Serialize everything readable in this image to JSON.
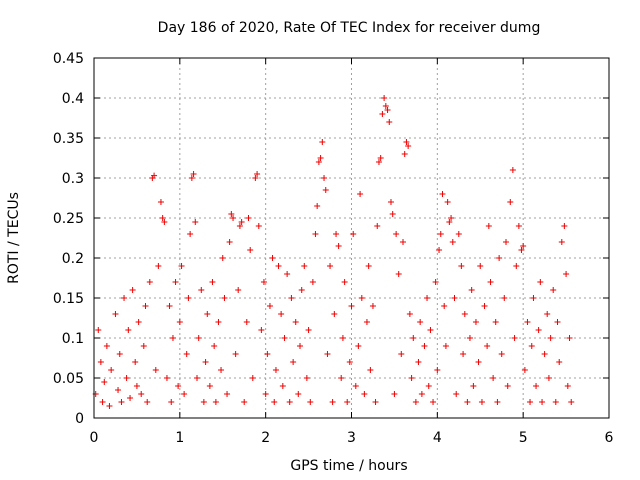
{
  "colors": {
    "series": "#ee0000",
    "grid": "#a0a0a0",
    "axis": "#000000"
  },
  "chart_data": {
    "type": "scatter",
    "title": "Day 186 of 2020, Rate Of TEC Index for receiver dumg",
    "xlabel": "GPS time / hours",
    "ylabel": "ROTI / TECUs",
    "xlim": [
      0,
      6
    ],
    "ylim": [
      0,
      0.45
    ],
    "xticks": [
      0,
      1,
      2,
      3,
      4,
      5,
      6
    ],
    "xtick_labels": [
      "0",
      "1",
      "2",
      "3",
      "4",
      "5",
      "6"
    ],
    "yticks": [
      0,
      0.05,
      0.1,
      0.15,
      0.2,
      0.25,
      0.3,
      0.35,
      0.4,
      0.45
    ],
    "ytick_labels": [
      "0",
      "0.05",
      "0.1",
      "0.15",
      "0.2",
      "0.25",
      "0.3",
      "0.35",
      "0.4",
      "0.45"
    ],
    "grid": true,
    "marker": "plus",
    "series": [
      {
        "points": [
          [
            0.02,
            0.03
          ],
          [
            0.05,
            0.11
          ],
          [
            0.08,
            0.07
          ],
          [
            0.1,
            0.02
          ],
          [
            0.12,
            0.045
          ],
          [
            0.15,
            0.09
          ],
          [
            0.18,
            0.015
          ],
          [
            0.2,
            0.06
          ],
          [
            0.25,
            0.13
          ],
          [
            0.28,
            0.035
          ],
          [
            0.3,
            0.08
          ],
          [
            0.32,
            0.02
          ],
          [
            0.35,
            0.15
          ],
          [
            0.38,
            0.05
          ],
          [
            0.4,
            0.11
          ],
          [
            0.42,
            0.025
          ],
          [
            0.45,
            0.16
          ],
          [
            0.48,
            0.07
          ],
          [
            0.5,
            0.04
          ],
          [
            0.52,
            0.12
          ],
          [
            0.55,
            0.03
          ],
          [
            0.58,
            0.09
          ],
          [
            0.6,
            0.14
          ],
          [
            0.62,
            0.02
          ],
          [
            0.65,
            0.17
          ],
          [
            0.68,
            0.3
          ],
          [
            0.7,
            0.303
          ],
          [
            0.72,
            0.06
          ],
          [
            0.75,
            0.19
          ],
          [
            0.78,
            0.27
          ],
          [
            0.8,
            0.25
          ],
          [
            0.82,
            0.245
          ],
          [
            0.85,
            0.05
          ],
          [
            0.88,
            0.14
          ],
          [
            0.9,
            0.02
          ],
          [
            0.92,
            0.1
          ],
          [
            0.95,
            0.17
          ],
          [
            0.98,
            0.04
          ],
          [
            1.0,
            0.12
          ],
          [
            1.02,
            0.19
          ],
          [
            1.05,
            0.03
          ],
          [
            1.08,
            0.08
          ],
          [
            1.1,
            0.15
          ],
          [
            1.12,
            0.23
          ],
          [
            1.14,
            0.3
          ],
          [
            1.16,
            0.305
          ],
          [
            1.18,
            0.245
          ],
          [
            1.2,
            0.05
          ],
          [
            1.22,
            0.1
          ],
          [
            1.25,
            0.16
          ],
          [
            1.28,
            0.02
          ],
          [
            1.3,
            0.07
          ],
          [
            1.32,
            0.13
          ],
          [
            1.35,
            0.04
          ],
          [
            1.38,
            0.17
          ],
          [
            1.4,
            0.09
          ],
          [
            1.42,
            0.02
          ],
          [
            1.45,
            0.12
          ],
          [
            1.48,
            0.06
          ],
          [
            1.5,
            0.2
          ],
          [
            1.52,
            0.15
          ],
          [
            1.55,
            0.03
          ],
          [
            1.58,
            0.22
          ],
          [
            1.6,
            0.255
          ],
          [
            1.62,
            0.25
          ],
          [
            1.65,
            0.08
          ],
          [
            1.68,
            0.16
          ],
          [
            1.7,
            0.24
          ],
          [
            1.72,
            0.245
          ],
          [
            1.75,
            0.02
          ],
          [
            1.78,
            0.12
          ],
          [
            1.8,
            0.25
          ],
          [
            1.82,
            0.21
          ],
          [
            1.85,
            0.05
          ],
          [
            1.88,
            0.3
          ],
          [
            1.9,
            0.305
          ],
          [
            1.92,
            0.24
          ],
          [
            1.95,
            0.11
          ],
          [
            1.98,
            0.17
          ],
          [
            2.0,
            0.03
          ],
          [
            2.02,
            0.08
          ],
          [
            2.05,
            0.14
          ],
          [
            2.08,
            0.2
          ],
          [
            2.1,
            0.02
          ],
          [
            2.12,
            0.06
          ],
          [
            2.15,
            0.19
          ],
          [
            2.18,
            0.13
          ],
          [
            2.2,
            0.04
          ],
          [
            2.22,
            0.1
          ],
          [
            2.25,
            0.18
          ],
          [
            2.28,
            0.02
          ],
          [
            2.3,
            0.15
          ],
          [
            2.32,
            0.07
          ],
          [
            2.35,
            0.12
          ],
          [
            2.38,
            0.03
          ],
          [
            2.4,
            0.09
          ],
          [
            2.42,
            0.16
          ],
          [
            2.45,
            0.19
          ],
          [
            2.48,
            0.05
          ],
          [
            2.5,
            0.11
          ],
          [
            2.52,
            0.02
          ],
          [
            2.55,
            0.17
          ],
          [
            2.58,
            0.23
          ],
          [
            2.6,
            0.265
          ],
          [
            2.62,
            0.32
          ],
          [
            2.64,
            0.325
          ],
          [
            2.66,
            0.345
          ],
          [
            2.68,
            0.3
          ],
          [
            2.7,
            0.285
          ],
          [
            2.72,
            0.08
          ],
          [
            2.75,
            0.19
          ],
          [
            2.78,
            0.02
          ],
          [
            2.8,
            0.13
          ],
          [
            2.82,
            0.23
          ],
          [
            2.85,
            0.215
          ],
          [
            2.88,
            0.05
          ],
          [
            2.9,
            0.1
          ],
          [
            2.92,
            0.17
          ],
          [
            2.95,
            0.02
          ],
          [
            2.98,
            0.07
          ],
          [
            3.0,
            0.14
          ],
          [
            3.02,
            0.23
          ],
          [
            3.05,
            0.04
          ],
          [
            3.08,
            0.09
          ],
          [
            3.1,
            0.28
          ],
          [
            3.12,
            0.15
          ],
          [
            3.15,
            0.03
          ],
          [
            3.18,
            0.12
          ],
          [
            3.2,
            0.19
          ],
          [
            3.22,
            0.06
          ],
          [
            3.25,
            0.14
          ],
          [
            3.28,
            0.02
          ],
          [
            3.3,
            0.24
          ],
          [
            3.32,
            0.32
          ],
          [
            3.34,
            0.325
          ],
          [
            3.36,
            0.38
          ],
          [
            3.38,
            0.4
          ],
          [
            3.4,
            0.39
          ],
          [
            3.42,
            0.385
          ],
          [
            3.44,
            0.37
          ],
          [
            3.46,
            0.27
          ],
          [
            3.48,
            0.255
          ],
          [
            3.5,
            0.03
          ],
          [
            3.52,
            0.23
          ],
          [
            3.55,
            0.18
          ],
          [
            3.58,
            0.08
          ],
          [
            3.6,
            0.22
          ],
          [
            3.62,
            0.33
          ],
          [
            3.64,
            0.345
          ],
          [
            3.66,
            0.34
          ],
          [
            3.68,
            0.13
          ],
          [
            3.7,
            0.05
          ],
          [
            3.72,
            0.1
          ],
          [
            3.75,
            0.02
          ],
          [
            3.78,
            0.07
          ],
          [
            3.8,
            0.12
          ],
          [
            3.82,
            0.03
          ],
          [
            3.85,
            0.09
          ],
          [
            3.88,
            0.15
          ],
          [
            3.9,
            0.04
          ],
          [
            3.92,
            0.11
          ],
          [
            3.95,
            0.02
          ],
          [
            3.98,
            0.17
          ],
          [
            4.0,
            0.06
          ],
          [
            4.02,
            0.21
          ],
          [
            4.04,
            0.23
          ],
          [
            4.06,
            0.28
          ],
          [
            4.08,
            0.14
          ],
          [
            4.1,
            0.09
          ],
          [
            4.12,
            0.27
          ],
          [
            4.14,
            0.245
          ],
          [
            4.16,
            0.25
          ],
          [
            4.18,
            0.22
          ],
          [
            4.2,
            0.15
          ],
          [
            4.22,
            0.03
          ],
          [
            4.25,
            0.23
          ],
          [
            4.28,
            0.19
          ],
          [
            4.3,
            0.08
          ],
          [
            4.32,
            0.13
          ],
          [
            4.35,
            0.02
          ],
          [
            4.38,
            0.1
          ],
          [
            4.4,
            0.16
          ],
          [
            4.42,
            0.04
          ],
          [
            4.45,
            0.12
          ],
          [
            4.48,
            0.07
          ],
          [
            4.5,
            0.19
          ],
          [
            4.52,
            0.02
          ],
          [
            4.55,
            0.14
          ],
          [
            4.58,
            0.09
          ],
          [
            4.6,
            0.24
          ],
          [
            4.62,
            0.17
          ],
          [
            4.65,
            0.05
          ],
          [
            4.68,
            0.12
          ],
          [
            4.7,
            0.02
          ],
          [
            4.72,
            0.2
          ],
          [
            4.75,
            0.08
          ],
          [
            4.78,
            0.15
          ],
          [
            4.8,
            0.22
          ],
          [
            4.82,
            0.04
          ],
          [
            4.85,
            0.27
          ],
          [
            4.88,
            0.31
          ],
          [
            4.9,
            0.1
          ],
          [
            4.92,
            0.19
          ],
          [
            4.95,
            0.24
          ],
          [
            4.98,
            0.21
          ],
          [
            5.0,
            0.215
          ],
          [
            5.02,
            0.06
          ],
          [
            5.05,
            0.12
          ],
          [
            5.08,
            0.02
          ],
          [
            5.1,
            0.09
          ],
          [
            5.12,
            0.15
          ],
          [
            5.15,
            0.04
          ],
          [
            5.18,
            0.11
          ],
          [
            5.2,
            0.17
          ],
          [
            5.22,
            0.02
          ],
          [
            5.25,
            0.08
          ],
          [
            5.28,
            0.13
          ],
          [
            5.3,
            0.05
          ],
          [
            5.32,
            0.1
          ],
          [
            5.35,
            0.16
          ],
          [
            5.38,
            0.02
          ],
          [
            5.4,
            0.12
          ],
          [
            5.42,
            0.07
          ],
          [
            5.45,
            0.22
          ],
          [
            5.48,
            0.24
          ],
          [
            5.5,
            0.18
          ],
          [
            5.52,
            0.04
          ],
          [
            5.54,
            0.1
          ],
          [
            5.56,
            0.02
          ]
        ]
      }
    ]
  }
}
